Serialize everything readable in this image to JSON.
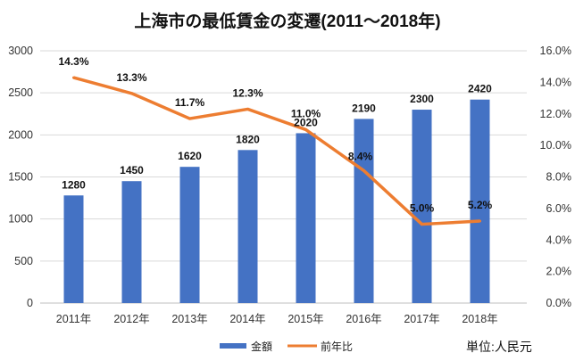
{
  "chart_data": {
    "type": "bar+line",
    "title": "上海市の最低賃金の変遷(2011～2018年)",
    "categories": [
      "2011年",
      "2012年",
      "2013年",
      "2014年",
      "2015年",
      "2016年",
      "2017年",
      "2018年"
    ],
    "series": [
      {
        "name": "金額",
        "type": "bar",
        "axis": "left",
        "color": "#4472C4",
        "values": [
          1280,
          1450,
          1620,
          1820,
          2020,
          2190,
          2300,
          2420
        ],
        "labels": [
          "1280",
          "1450",
          "1620",
          "1820",
          "2020",
          "2190",
          "2300",
          "2420"
        ]
      },
      {
        "name": "前年比",
        "type": "line",
        "axis": "right",
        "color": "#ED7D31",
        "values": [
          14.3,
          13.3,
          11.7,
          12.3,
          11.0,
          8.4,
          5.0,
          5.2
        ],
        "labels": [
          "14.3%",
          "13.3%",
          "11.7%",
          "12.3%",
          "11.0%",
          "8.4%",
          "5.0%",
          "5.2%"
        ]
      }
    ],
    "left_axis": {
      "range": [
        0,
        3000
      ],
      "ticks": [
        "0",
        "500",
        "1000",
        "1500",
        "2000",
        "2500",
        "3000"
      ]
    },
    "right_axis": {
      "range": [
        0,
        16
      ],
      "ticks": [
        "0.0%",
        "2.0%",
        "4.0%",
        "6.0%",
        "8.0%",
        "10.0%",
        "12.0%",
        "14.0%",
        "16.0%"
      ]
    },
    "grid": true,
    "legend_position": "bottom",
    "unit_note": "単位:人民元"
  }
}
